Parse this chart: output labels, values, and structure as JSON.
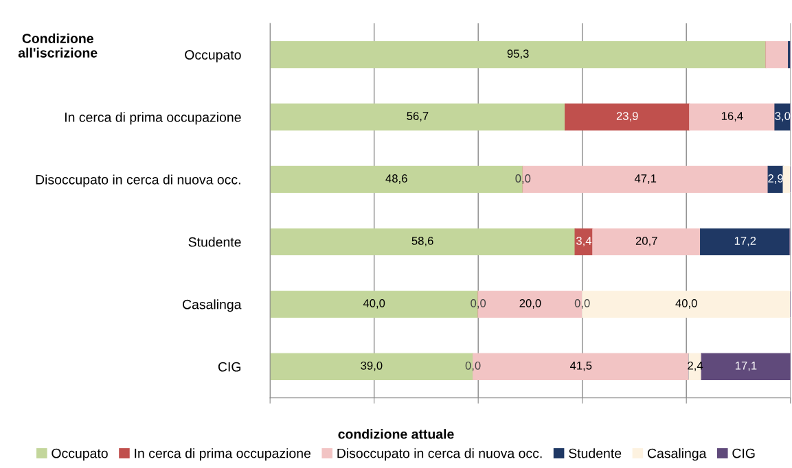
{
  "chart_data": {
    "type": "bar",
    "orientation": "horizontal",
    "stacked": true,
    "ylabel": "Condizione\nall'iscrizione",
    "xlabel": "condizione attuale",
    "categories": [
      "Occupato",
      "In cerca di prima occupazione",
      "Disoccupato in cerca di nuova occ.",
      "Studente",
      "Casalinga",
      "CIG"
    ],
    "series": [
      {
        "name": "Occupato",
        "color": "#c3d69b",
        "values": [
          95.3,
          56.7,
          48.6,
          58.6,
          40.0,
          39.0
        ],
        "value_labels": [
          "95,3",
          "56,7",
          "48,6",
          "58,6",
          "40,0",
          "39,0"
        ]
      },
      {
        "name": "In cerca di prima occupazione",
        "color": "#c0504d",
        "values": [
          0.0,
          23.9,
          0.0,
          3.4,
          0.0,
          0.0
        ],
        "value_labels": [
          null,
          "23,9",
          "0,0",
          "3,4",
          "0,0",
          "0,0"
        ]
      },
      {
        "name": "Disoccupato in cerca di nuova occ.",
        "color": "#f2c4c4",
        "values": [
          4.3,
          16.4,
          47.1,
          20.7,
          20.0,
          41.5
        ],
        "value_labels": [
          null,
          "16,4",
          "47,1",
          "20,7",
          "20,0",
          "41,5"
        ]
      },
      {
        "name": "Studente",
        "color": "#1f3864",
        "values": [
          0.4,
          3.0,
          2.9,
          17.2,
          0.0,
          0.0
        ],
        "value_labels": [
          null,
          "3,0",
          "2,9",
          "17,2",
          "0,0",
          null
        ]
      },
      {
        "name": "Casalinga",
        "color": "#fdf2e0",
        "values": [
          0.0,
          0.0,
          1.4,
          0.0,
          40.0,
          2.4
        ],
        "value_labels": [
          null,
          null,
          null,
          null,
          "40,0",
          "2,4"
        ]
      },
      {
        "name": "CIG",
        "color": "#604a7b",
        "values": [
          0.0,
          0.0,
          0.0,
          0.0,
          0.0,
          17.1
        ],
        "value_labels": [
          null,
          null,
          null,
          null,
          null,
          "17,1"
        ]
      }
    ],
    "tick_labels": "y",
    "grid": "x",
    "legend": "bottom"
  }
}
